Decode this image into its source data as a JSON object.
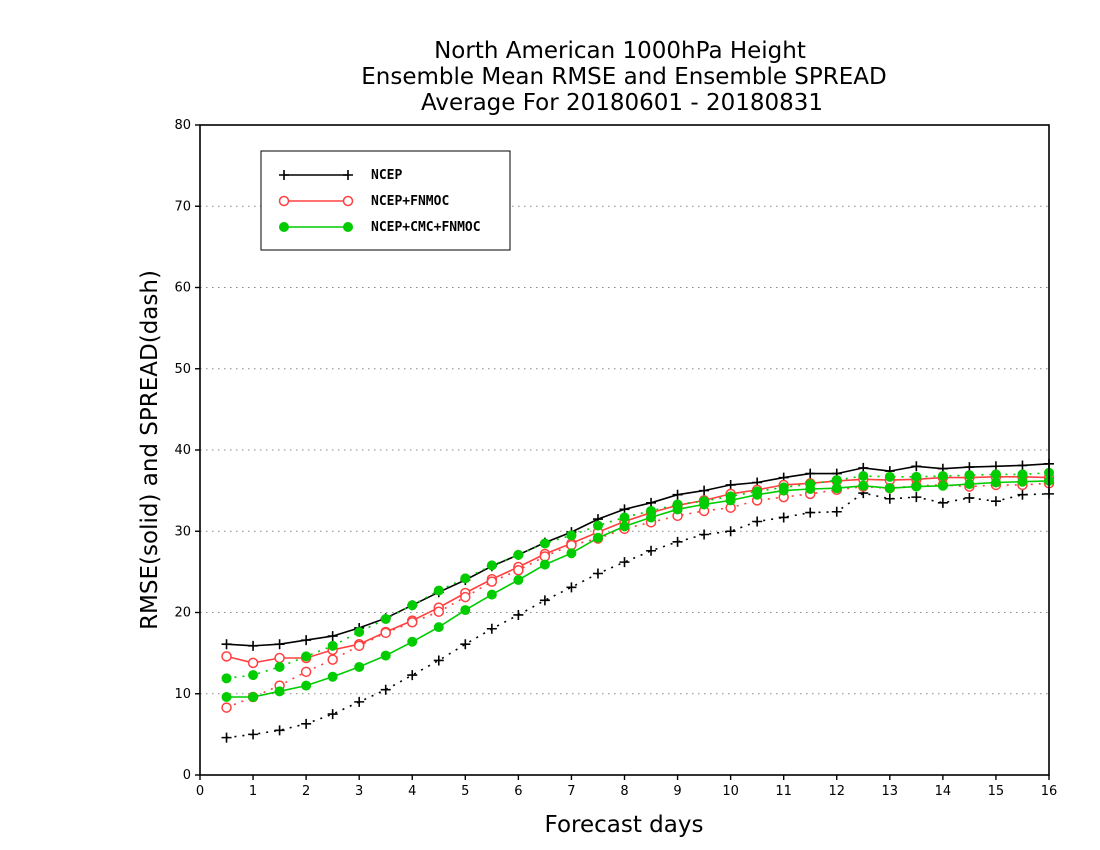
{
  "chart_data": {
    "type": "line",
    "title": [
      "North American 1000hPa Height",
      "Ensemble Mean RMSE and Ensemble SPREAD",
      "Average For 20180601 - 20180831"
    ],
    "xlabel": "Forecast days",
    "ylabel": "RMSE(solid) and SPREAD(dash)",
    "xlim": [
      0,
      16
    ],
    "ylim": [
      0,
      80
    ],
    "xticks": [
      0,
      1,
      2,
      3,
      4,
      5,
      6,
      7,
      8,
      9,
      10,
      11,
      12,
      13,
      14,
      15,
      16
    ],
    "yticks": [
      0,
      10,
      20,
      30,
      40,
      50,
      60,
      70,
      80
    ],
    "grid": "horizontal dotted",
    "legend_position": "top-left",
    "x": [
      0.5,
      1,
      1.5,
      2,
      2.5,
      3,
      3.5,
      4,
      4.5,
      5,
      5.5,
      6,
      6.5,
      7,
      7.5,
      8,
      8.5,
      9,
      9.5,
      10,
      10.5,
      11,
      11.5,
      12,
      12.5,
      13,
      13.5,
      14,
      14.5,
      15,
      15.5,
      16
    ],
    "series": [
      {
        "name": "NCEP",
        "color": "#000000",
        "marker": "plus",
        "rmse": [
          16.1,
          15.9,
          16.1,
          16.6,
          17.1,
          18.1,
          19.3,
          20.9,
          22.5,
          24.0,
          25.7,
          27.1,
          28.6,
          29.9,
          31.5,
          32.7,
          33.5,
          34.5,
          35.0,
          35.7,
          36.0,
          36.6,
          37.1,
          37.1,
          37.8,
          37.4,
          38.0,
          37.7,
          37.9,
          38.0,
          38.1,
          38.3
        ],
        "spread": [
          4.6,
          5.0,
          5.5,
          6.3,
          7.5,
          9.0,
          10.5,
          12.3,
          14.1,
          16.1,
          18.0,
          19.7,
          21.5,
          23.1,
          24.8,
          26.2,
          27.6,
          28.7,
          29.6,
          30.0,
          31.2,
          31.7,
          32.3,
          32.4,
          34.7,
          34.0,
          34.2,
          33.5,
          34.1,
          33.7,
          34.5,
          34.6
        ]
      },
      {
        "name": "NCEP+FNMOC",
        "color": "#ff4040",
        "marker": "open-circle",
        "rmse": [
          14.6,
          13.8,
          14.4,
          14.4,
          15.4,
          16.1,
          17.6,
          19.0,
          20.6,
          22.4,
          24.1,
          25.6,
          27.2,
          28.5,
          29.9,
          31.2,
          32.3,
          33.2,
          33.8,
          34.6,
          35.1,
          35.7,
          35.9,
          36.2,
          36.4,
          36.3,
          36.4,
          36.6,
          36.6,
          36.7,
          36.7,
          36.6
        ],
        "spread": [
          8.3,
          9.6,
          11.0,
          12.7,
          14.2,
          15.9,
          17.5,
          18.8,
          20.1,
          21.9,
          23.8,
          25.2,
          26.9,
          28.3,
          29.1,
          30.3,
          31.1,
          31.9,
          32.5,
          32.9,
          33.8,
          34.2,
          34.6,
          35.1,
          35.5,
          35.3,
          35.6,
          35.7,
          35.5,
          35.7,
          35.7,
          35.9
        ]
      },
      {
        "name": "NCEP+CMC+FNMOC",
        "color": "#00cc00",
        "marker": "filled-circle",
        "rmse": [
          9.6,
          9.6,
          10.3,
          11.0,
          12.1,
          13.3,
          14.7,
          16.4,
          18.2,
          20.3,
          22.2,
          24.0,
          25.9,
          27.3,
          29.2,
          30.6,
          31.7,
          32.7,
          33.3,
          33.8,
          34.5,
          35.0,
          35.2,
          35.3,
          35.6,
          35.3,
          35.5,
          35.6,
          35.8,
          36.0,
          36.1,
          36.2
        ],
        "spread": [
          11.9,
          12.3,
          13.3,
          14.6,
          15.9,
          17.6,
          19.2,
          20.9,
          22.7,
          24.2,
          25.8,
          27.1,
          28.5,
          29.5,
          30.7,
          31.7,
          32.5,
          33.3,
          33.7,
          34.3,
          34.9,
          35.4,
          35.8,
          36.3,
          36.8,
          36.7,
          36.7,
          36.8,
          36.9,
          37.0,
          37.0,
          37.2
        ]
      }
    ]
  }
}
